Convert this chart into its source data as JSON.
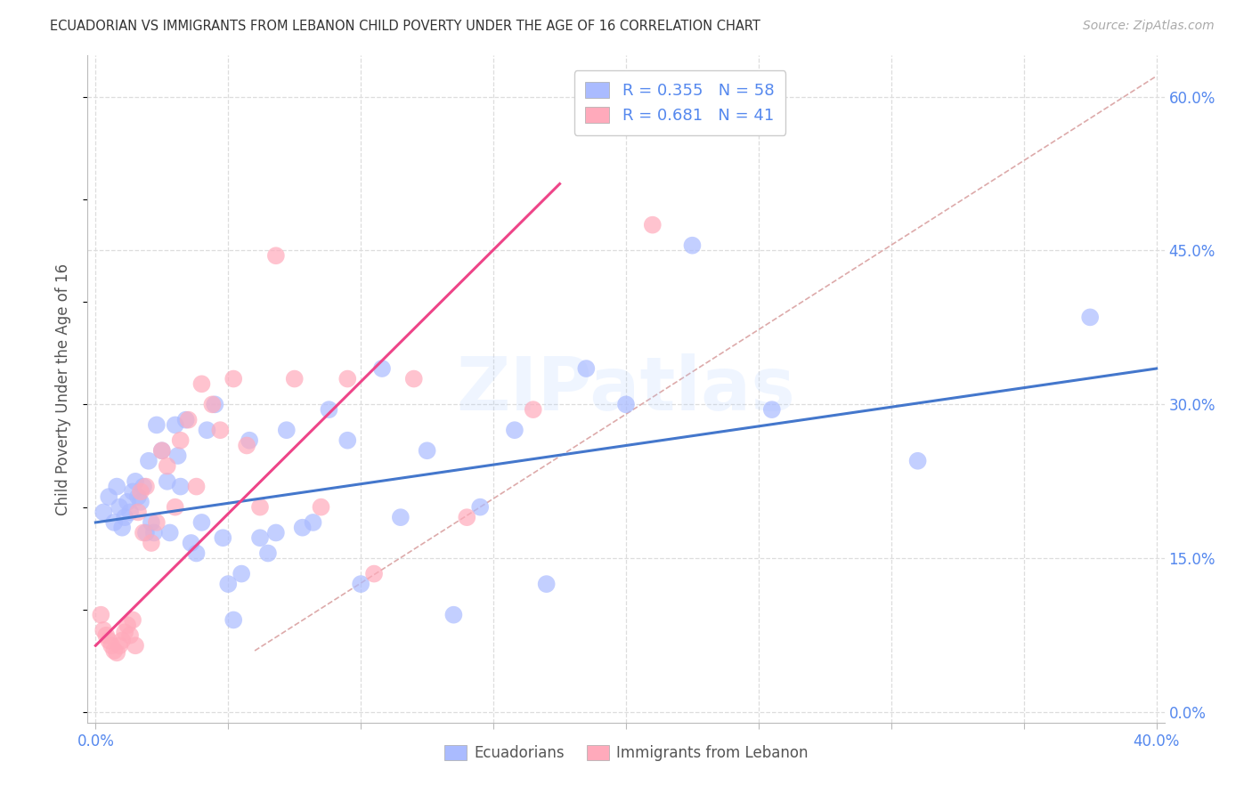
{
  "title": "ECUADORIAN VS IMMIGRANTS FROM LEBANON CHILD POVERTY UNDER THE AGE OF 16 CORRELATION CHART",
  "source": "Source: ZipAtlas.com",
  "ylabel": "Child Poverty Under the Age of 16",
  "xmin": 0.0,
  "xmax": 0.4,
  "ymin": 0.0,
  "ymax": 0.63,
  "xtick_positions": [
    0.0,
    0.05,
    0.1,
    0.15,
    0.2,
    0.25,
    0.3,
    0.35,
    0.4
  ],
  "xtick_labels_show": {
    "0.0": "0.0%",
    "0.40": "40.0%"
  },
  "ytick_positions": [
    0.0,
    0.15,
    0.3,
    0.45,
    0.6
  ],
  "ytick_labels": [
    "0.0%",
    "15.0%",
    "30.0%",
    "45.0%",
    "60.0%"
  ],
  "blue_color": "#aabbff",
  "pink_color": "#ffaabb",
  "blue_line_color": "#4477cc",
  "pink_line_color": "#ee4488",
  "diag_line_color": "#ddaaaa",
  "tick_color": "#5588ee",
  "grid_color": "#dddddd",
  "legend_text_color": "#5588ee",
  "legend_R_color": "#333333",
  "blue_scatter_x": [
    0.003,
    0.005,
    0.007,
    0.008,
    0.009,
    0.01,
    0.011,
    0.012,
    0.013,
    0.014,
    0.015,
    0.016,
    0.017,
    0.018,
    0.019,
    0.02,
    0.021,
    0.022,
    0.023,
    0.025,
    0.027,
    0.028,
    0.03,
    0.031,
    0.032,
    0.034,
    0.036,
    0.038,
    0.04,
    0.042,
    0.045,
    0.048,
    0.05,
    0.052,
    0.055,
    0.058,
    0.062,
    0.065,
    0.068,
    0.072,
    0.078,
    0.082,
    0.088,
    0.095,
    0.1,
    0.108,
    0.115,
    0.125,
    0.135,
    0.145,
    0.158,
    0.17,
    0.185,
    0.2,
    0.225,
    0.255,
    0.31,
    0.375
  ],
  "blue_scatter_y": [
    0.195,
    0.21,
    0.185,
    0.22,
    0.2,
    0.18,
    0.19,
    0.205,
    0.195,
    0.215,
    0.225,
    0.21,
    0.205,
    0.22,
    0.175,
    0.245,
    0.185,
    0.175,
    0.28,
    0.255,
    0.225,
    0.175,
    0.28,
    0.25,
    0.22,
    0.285,
    0.165,
    0.155,
    0.185,
    0.275,
    0.3,
    0.17,
    0.125,
    0.09,
    0.135,
    0.265,
    0.17,
    0.155,
    0.175,
    0.275,
    0.18,
    0.185,
    0.295,
    0.265,
    0.125,
    0.335,
    0.19,
    0.255,
    0.095,
    0.2,
    0.275,
    0.125,
    0.335,
    0.3,
    0.455,
    0.295,
    0.245,
    0.385
  ],
  "pink_scatter_x": [
    0.002,
    0.003,
    0.004,
    0.005,
    0.006,
    0.007,
    0.008,
    0.009,
    0.01,
    0.011,
    0.012,
    0.013,
    0.014,
    0.015,
    0.016,
    0.017,
    0.018,
    0.019,
    0.021,
    0.023,
    0.025,
    0.027,
    0.03,
    0.032,
    0.035,
    0.038,
    0.04,
    0.044,
    0.047,
    0.052,
    0.057,
    0.062,
    0.068,
    0.075,
    0.085,
    0.095,
    0.105,
    0.12,
    0.14,
    0.165,
    0.21
  ],
  "pink_scatter_y": [
    0.095,
    0.08,
    0.075,
    0.07,
    0.065,
    0.06,
    0.058,
    0.065,
    0.07,
    0.078,
    0.085,
    0.075,
    0.09,
    0.065,
    0.195,
    0.215,
    0.175,
    0.22,
    0.165,
    0.185,
    0.255,
    0.24,
    0.2,
    0.265,
    0.285,
    0.22,
    0.32,
    0.3,
    0.275,
    0.325,
    0.26,
    0.2,
    0.445,
    0.325,
    0.2,
    0.325,
    0.135,
    0.325,
    0.19,
    0.295,
    0.475
  ],
  "blue_line_x": [
    0.0,
    0.4
  ],
  "blue_line_y": [
    0.185,
    0.335
  ],
  "pink_line_x": [
    0.0,
    0.175
  ],
  "pink_line_y": [
    0.065,
    0.515
  ],
  "diag_line_x": [
    0.06,
    0.4
  ],
  "diag_line_y": [
    0.06,
    0.62
  ],
  "watermark": "ZIPatlas",
  "legend_R_blue": "R = 0.355",
  "legend_N_blue": "N = 58",
  "legend_R_pink": "R = 0.681",
  "legend_N_pink": "N = 41",
  "figwidth": 14.06,
  "figheight": 8.92,
  "dpi": 100
}
